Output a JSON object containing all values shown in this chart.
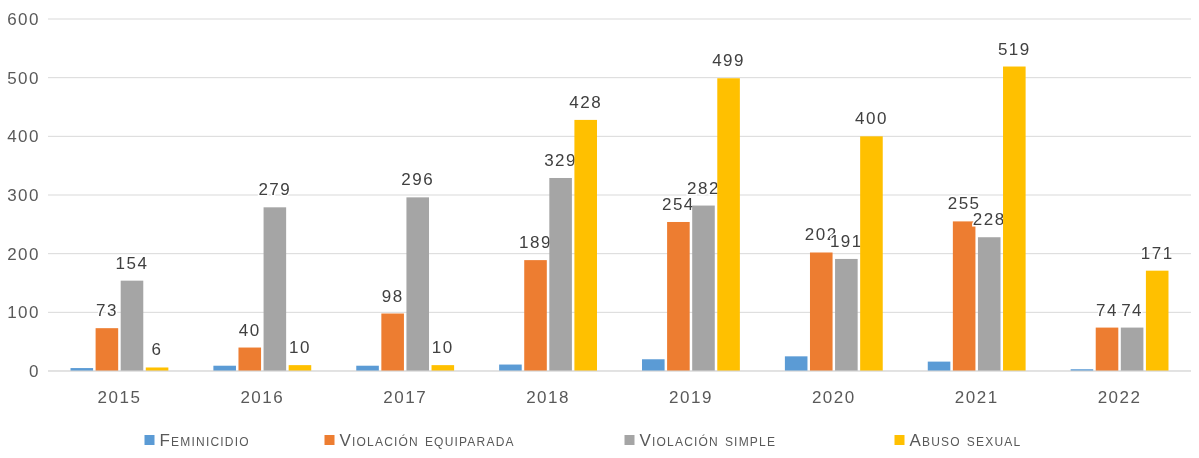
{
  "chart_data": {
    "type": "bar",
    "categories": [
      "2015",
      "2016",
      "2017",
      "2018",
      "2019",
      "2020",
      "2021",
      "2022"
    ],
    "series": [
      {
        "name": "Feminicidio",
        "color": "#5b9bd5",
        "values": [
          5,
          9,
          9,
          11,
          20,
          25,
          16,
          3
        ],
        "value_labels": [
          null,
          null,
          null,
          null,
          null,
          null,
          null,
          null
        ]
      },
      {
        "name": "Violación equiparada",
        "color": "#ed7d31",
        "values": [
          73,
          40,
          98,
          189,
          254,
          202,
          255,
          74
        ],
        "value_labels": [
          "73",
          "40",
          "98",
          "189",
          "254",
          "202",
          "255",
          "74"
        ]
      },
      {
        "name": "Violación simple",
        "color": "#a5a5a5",
        "values": [
          154,
          279,
          296,
          329,
          282,
          191,
          228,
          74
        ],
        "value_labels": [
          "154",
          "279",
          "296",
          "329",
          "282",
          "191",
          "228",
          "74"
        ]
      },
      {
        "name": "Abuso sexual",
        "color": "#ffc000",
        "values": [
          6,
          10,
          10,
          428,
          499,
          400,
          519,
          171
        ],
        "value_labels": [
          "6",
          "10",
          "10",
          "428",
          "499",
          "400",
          "519",
          "171"
        ]
      }
    ],
    "ylim": [
      0,
      600
    ],
    "yticks": [
      0,
      100,
      200,
      300,
      400,
      500,
      600
    ],
    "grid": "y",
    "legend": "bottom"
  }
}
